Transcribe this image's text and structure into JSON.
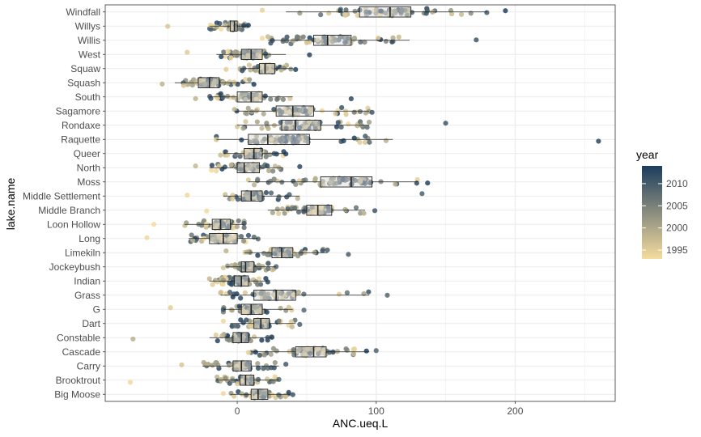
{
  "chart_data": {
    "type": "box-jitter",
    "title": "",
    "xlabel": "ANC.ueq.L",
    "ylabel": "lake.name",
    "xlim": [
      -95,
      272
    ],
    "x_ticks": [
      0,
      100,
      200
    ],
    "legend": {
      "title": "year",
      "placement": "right",
      "range": [
        1993,
        2014
      ],
      "ticks": [
        2010,
        2005,
        2000,
        1995
      ],
      "low_color": "#F6DC9E",
      "high_color": "#1C3D5E"
    },
    "grid": true,
    "lakes": [
      {
        "name": "Windfall",
        "q1": 88,
        "median": 110,
        "q3": 125,
        "whisker_low": 35,
        "whisker_high": 180,
        "min": 18,
        "max": 193
      },
      {
        "name": "Willys",
        "q1": -5,
        "median": -2,
        "q3": 0,
        "whisker_low": -20,
        "whisker_high": 8,
        "min": -50,
        "max": 8
      },
      {
        "name": "Willis",
        "q1": 55,
        "median": 65,
        "q3": 82,
        "whisker_low": 22,
        "whisker_high": 124,
        "min": 18,
        "max": 172
      },
      {
        "name": "West",
        "q1": 3,
        "median": 10,
        "q3": 18,
        "whisker_low": -15,
        "whisker_high": 35,
        "min": -36,
        "max": 52
      },
      {
        "name": "Squaw",
        "q1": 16,
        "median": 20,
        "q3": 27,
        "whisker_low": 2,
        "whisker_high": 40,
        "min": -8,
        "max": 42
      },
      {
        "name": "Squash",
        "q1": -28,
        "median": -20,
        "q3": -13,
        "whisker_low": -45,
        "whisker_high": 12,
        "min": -54,
        "max": 12
      },
      {
        "name": "South",
        "q1": 0,
        "median": 10,
        "q3": 18,
        "whisker_low": -20,
        "whisker_high": 40,
        "min": -30,
        "max": 82
      },
      {
        "name": "Sagamore",
        "q1": 28,
        "median": 40,
        "q3": 55,
        "whisker_low": -2,
        "whisker_high": 95,
        "min": -2,
        "max": 97
      },
      {
        "name": "Rondaxe",
        "q1": 32,
        "median": 42,
        "q3": 60,
        "whisker_low": 0,
        "whisker_high": 95,
        "min": 0,
        "max": 150
      },
      {
        "name": "Raquette",
        "q1": 8,
        "median": 22,
        "q3": 52,
        "whisker_low": -15,
        "whisker_high": 112,
        "min": -15,
        "max": 260
      },
      {
        "name": "Queer",
        "q1": 5,
        "median": 12,
        "q3": 18,
        "whisker_low": -10,
        "whisker_high": 35,
        "min": -12,
        "max": 35
      },
      {
        "name": "North",
        "q1": 0,
        "median": 5,
        "q3": 16,
        "whisker_low": -20,
        "whisker_high": 33,
        "min": -30,
        "max": 45
      },
      {
        "name": "Moss",
        "q1": 60,
        "median": 82,
        "q3": 97,
        "whisker_low": 8,
        "whisker_high": 130,
        "min": 8,
        "max": 137
      },
      {
        "name": "Middle Settlement",
        "q1": 3,
        "median": 10,
        "q3": 18,
        "whisker_low": -10,
        "whisker_high": 45,
        "min": -36,
        "max": 133
      },
      {
        "name": "Middle Branch",
        "q1": 50,
        "median": 58,
        "q3": 68,
        "whisker_low": 22,
        "whisker_high": 92,
        "min": -22,
        "max": 99
      },
      {
        "name": "Loon Hollow",
        "q1": -18,
        "median": -12,
        "q3": -5,
        "whisker_low": -38,
        "whisker_high": 5,
        "min": -60,
        "max": 5
      },
      {
        "name": "Long",
        "q1": -20,
        "median": -10,
        "q3": 0,
        "whisker_low": -35,
        "whisker_high": 15,
        "min": -65,
        "max": 15
      },
      {
        "name": "Limekiln",
        "q1": 25,
        "median": 32,
        "q3": 40,
        "whisker_low": 5,
        "whisker_high": 65,
        "min": -8,
        "max": 80
      },
      {
        "name": "Jockeybush",
        "q1": 3,
        "median": 6,
        "q3": 12,
        "whisker_low": -8,
        "whisker_high": 28,
        "min": -10,
        "max": 28
      },
      {
        "name": "Indian",
        "q1": -2,
        "median": 3,
        "q3": 8,
        "whisker_low": -20,
        "whisker_high": 22,
        "min": -20,
        "max": 22
      },
      {
        "name": "Grass",
        "q1": 12,
        "median": 28,
        "q3": 42,
        "whisker_low": -12,
        "whisker_high": 95,
        "min": -12,
        "max": 108
      },
      {
        "name": "G",
        "q1": 3,
        "median": 10,
        "q3": 18,
        "whisker_low": -10,
        "whisker_high": 40,
        "min": -48,
        "max": 48
      },
      {
        "name": "Dart",
        "q1": 12,
        "median": 17,
        "q3": 23,
        "whisker_low": -5,
        "whisker_high": 42,
        "min": -10,
        "max": 45
      },
      {
        "name": "Constable",
        "q1": -3,
        "median": 3,
        "q3": 8,
        "whisker_low": -20,
        "whisker_high": 25,
        "min": -75,
        "max": 25
      },
      {
        "name": "Cascade",
        "q1": 42,
        "median": 55,
        "q3": 64,
        "whisker_low": 10,
        "whisker_high": 95,
        "min": 8,
        "max": 100
      },
      {
        "name": "Carry",
        "q1": -3,
        "median": 3,
        "q3": 10,
        "whisker_low": -25,
        "whisker_high": 30,
        "min": -40,
        "max": 35
      },
      {
        "name": "Brooktrout",
        "q1": 2,
        "median": 6,
        "q3": 12,
        "whisker_low": -15,
        "whisker_high": 30,
        "min": -77,
        "max": 30
      },
      {
        "name": "Big Moose",
        "q1": 10,
        "median": 15,
        "q3": 22,
        "whisker_low": -5,
        "whisker_high": 38,
        "min": -10,
        "max": 40
      }
    ]
  }
}
